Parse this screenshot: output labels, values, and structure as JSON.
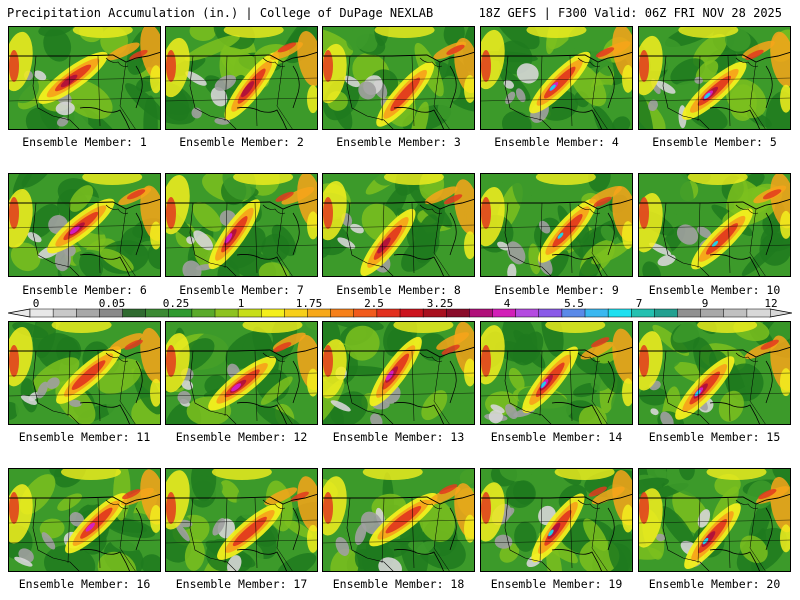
{
  "header": {
    "left": "Precipitation Accumulation (in.) | College of DuPage NEXLAB",
    "right": "18Z GEFS | F300 Valid: 06Z FRI NOV 28 2025"
  },
  "colors": {
    "grey_light": "#d6d6d6",
    "grey": "#a0a0a0",
    "green_dark": "#1f7a1f",
    "green": "#3c9a2a",
    "green_light": "#7bbf1f",
    "yellow": "#f3ef1e",
    "orange": "#f7a41a",
    "red": "#e23a1e",
    "crimson": "#b0103a",
    "magenta": "#d51fc7",
    "purple": "#8a3fd0",
    "blue": "#4a84e8",
    "cyan": "#19d8ee",
    "border": "#000000"
  },
  "colorbar": {
    "ticks": [
      "0",
      "0.05",
      "0.25",
      "1",
      "1.75",
      "2.5",
      "3.25",
      "4",
      "5.5",
      "7",
      "9",
      "12"
    ],
    "swatches": [
      "#e8e8e8",
      "#c8c8c8",
      "#a8a8a8",
      "#8a8a8a",
      "#2f6b2f",
      "#3b8a33",
      "#2f9a2f",
      "#5aaa2a",
      "#8dc21f",
      "#c7de1a",
      "#f4ef1c",
      "#f7cf1a",
      "#f7a81a",
      "#f6801a",
      "#f15a1c",
      "#e2301e",
      "#cc141e",
      "#a8101e",
      "#8a0c2a",
      "#b0107a",
      "#d21fb8",
      "#b44be0",
      "#8a5ae8",
      "#5a8ae8",
      "#3ab8f0",
      "#1ee0f0",
      "#24c0b0",
      "#22a090",
      "#909090",
      "#a8a8a8",
      "#c0c0c0",
      "#d8d8d8"
    ]
  },
  "panels": [
    {
      "label": "Ensemble Member: 1"
    },
    {
      "label": "Ensemble Member: 2"
    },
    {
      "label": "Ensemble Member: 3"
    },
    {
      "label": "Ensemble Member: 4"
    },
    {
      "label": "Ensemble Member: 5"
    },
    {
      "label": "Ensemble Member: 6"
    },
    {
      "label": "Ensemble Member: 7"
    },
    {
      "label": "Ensemble Member: 8"
    },
    {
      "label": "Ensemble Member: 9"
    },
    {
      "label": "Ensemble Member: 10"
    },
    {
      "label": "Ensemble Member: 11"
    },
    {
      "label": "Ensemble Member: 12"
    },
    {
      "label": "Ensemble Member: 13"
    },
    {
      "label": "Ensemble Member: 14"
    },
    {
      "label": "Ensemble Member: 15"
    },
    {
      "label": "Ensemble Member: 16"
    },
    {
      "label": "Ensemble Member: 17"
    },
    {
      "label": "Ensemble Member: 18"
    },
    {
      "label": "Ensemble Member: 19"
    },
    {
      "label": "Ensemble Member: 20"
    }
  ]
}
